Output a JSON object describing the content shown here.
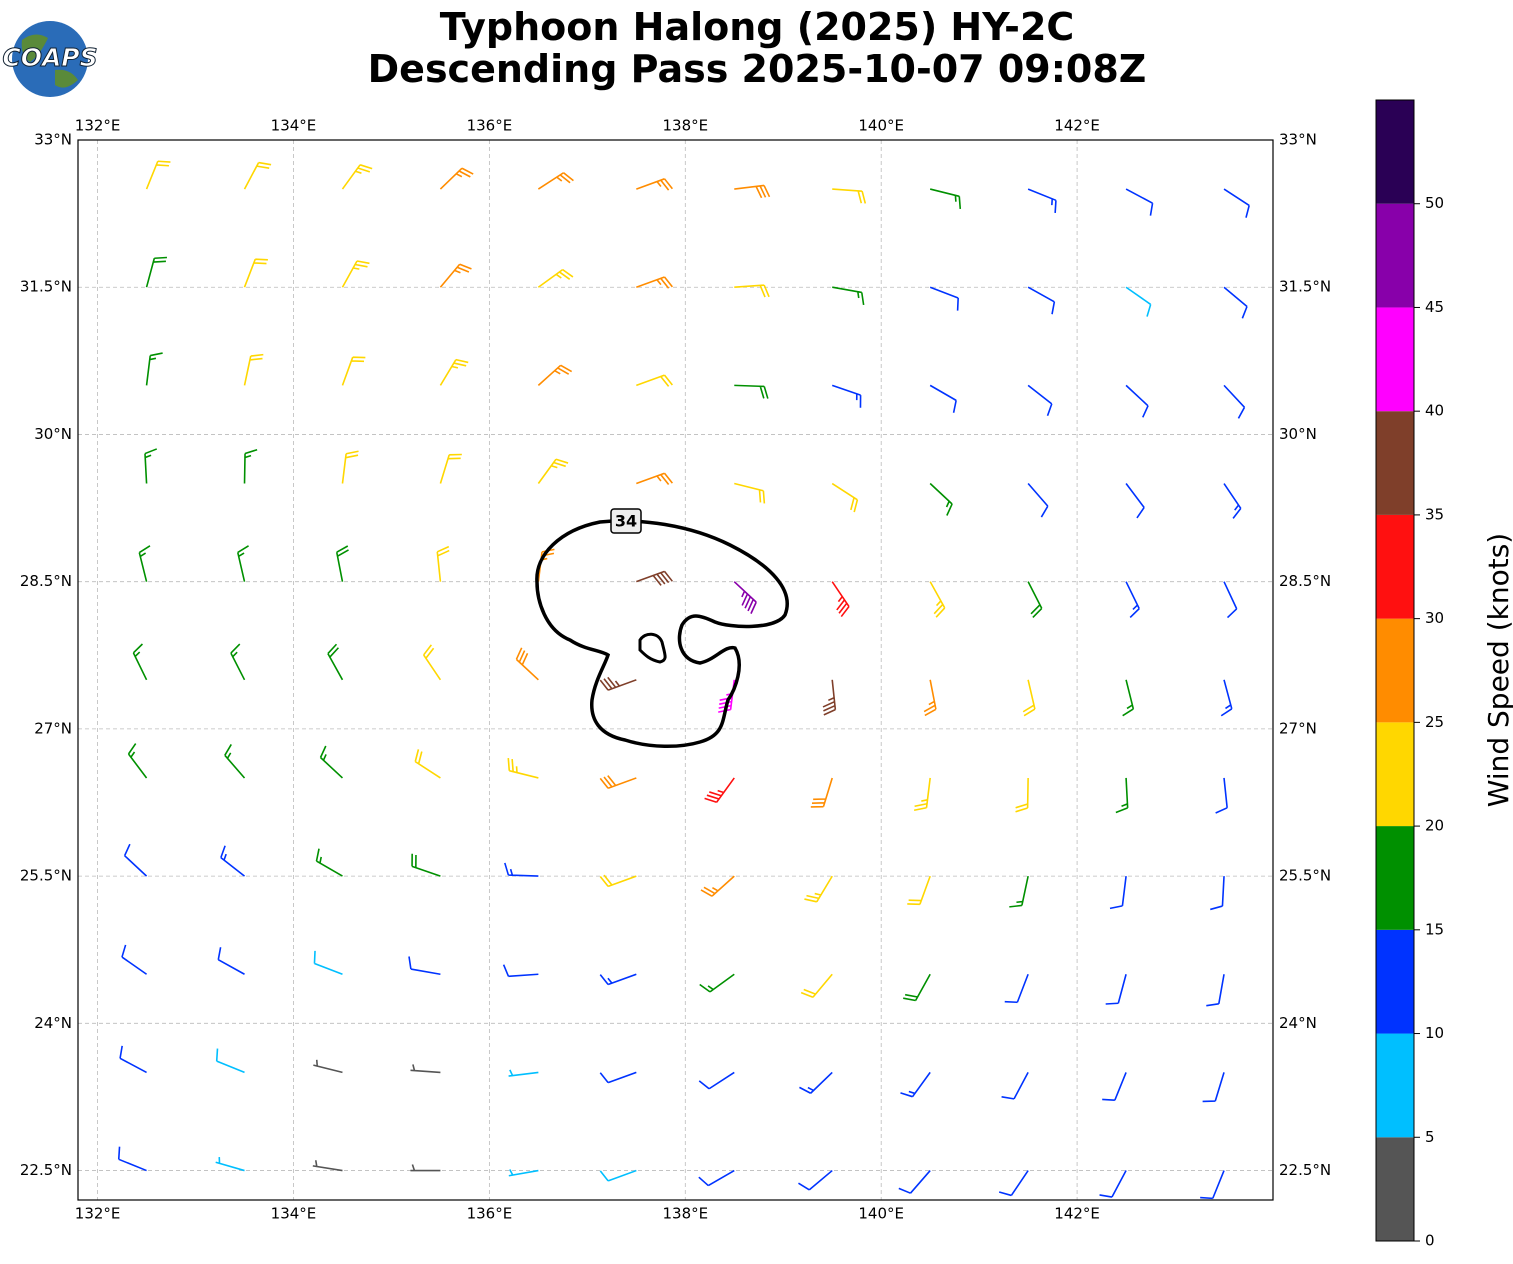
{
  "chart_data": {
    "type": "wind-barbs",
    "title": [
      "Typhoon Halong (2025) HY-2C",
      "Descending Pass 2025-10-07 09:08Z"
    ],
    "logo": "COAPS",
    "xlim": [
      131.8,
      144
    ],
    "ylim": [
      22.2,
      33
    ],
    "xticks": [
      {
        "value": 132,
        "label": "132°E"
      },
      {
        "value": 134,
        "label": "134°E"
      },
      {
        "value": 136,
        "label": "136°E"
      },
      {
        "value": 138,
        "label": "138°E"
      },
      {
        "value": 140,
        "label": "140°E"
      },
      {
        "value": 142,
        "label": "142°E"
      }
    ],
    "yticks": [
      {
        "value": 22.5,
        "label": "22.5°N"
      },
      {
        "value": 24,
        "label": "24°N"
      },
      {
        "value": 25.5,
        "label": "25.5°N"
      },
      {
        "value": 27,
        "label": "27°N"
      },
      {
        "value": 28.5,
        "label": "28.5°N"
      },
      {
        "value": 30,
        "label": "30°N"
      },
      {
        "value": 31.5,
        "label": "31.5°N"
      },
      {
        "value": 33,
        "label": "33°N"
      }
    ],
    "grid": true,
    "contour": {
      "level": 34,
      "label": "34"
    },
    "colorbar": {
      "label": "Wind Speed (knots)",
      "clim": [
        0,
        55
      ],
      "bounds": [
        0,
        5,
        10,
        15,
        20,
        25,
        30,
        35,
        40,
        45,
        50,
        55
      ],
      "colors": [
        "#555555",
        "#00bfff",
        "#0033ff",
        "#009000",
        "#ffd700",
        "#ff8c00",
        "#ff1010",
        "#7f3f2a",
        "#ff00ff",
        "#8800aa",
        "#2a0055"
      ],
      "ticks": [
        0,
        5,
        10,
        15,
        20,
        25,
        30,
        35,
        40,
        45,
        50
      ]
    },
    "barbs": {
      "lons": [
        132.5,
        133.5,
        134.5,
        135.5,
        136.5,
        137.5,
        138.5,
        139.5,
        140.5,
        141.5,
        142.5,
        143.5
      ],
      "lats": [
        32.5,
        31.5,
        30.5,
        29.5,
        28.5,
        27.5,
        26.5,
        25.5,
        24.5,
        23.5,
        22.5
      ],
      "speed": [
        [
          20,
          22,
          23,
          27,
          27,
          27,
          28,
          22,
          17,
          13,
          12,
          11
        ],
        [
          18,
          22,
          23,
          27,
          23,
          27,
          22,
          17,
          12,
          11,
          8,
          11
        ],
        [
          17,
          20,
          22,
          23,
          27,
          22,
          18,
          13,
          12,
          12,
          11,
          12
        ],
        [
          17,
          17,
          20,
          22,
          23,
          27,
          22,
          22,
          17,
          12,
          12,
          13
        ],
        [
          16,
          17,
          18,
          22,
          27,
          38,
          45,
          33,
          23,
          18,
          13,
          12
        ],
        [
          16,
          17,
          18,
          22,
          28,
          36,
          44,
          36,
          27,
          22,
          17,
          13
        ],
        [
          16,
          17,
          17,
          20,
          23,
          28,
          33,
          28,
          23,
          22,
          17,
          12
        ],
        [
          12,
          13,
          17,
          18,
          13,
          22,
          27,
          24,
          22,
          16,
          12,
          11
        ],
        [
          12,
          11,
          8,
          10,
          12,
          13,
          17,
          20,
          18,
          12,
          11,
          11
        ],
        [
          12,
          8,
          4,
          3,
          7,
          12,
          12,
          14,
          13,
          11,
          11,
          12
        ],
        [
          11,
          7,
          4,
          3,
          7,
          9,
          11,
          12,
          12,
          11,
          12,
          12
        ]
      ],
      "direction": [
        [
          248,
          242,
          234,
          224,
          213,
          200,
          187,
          176,
          166,
          158,
          152,
          147
        ],
        [
          255,
          249,
          241,
          230,
          216,
          200,
          184,
          170,
          159,
          151,
          145,
          140
        ],
        [
          263,
          258,
          250,
          239,
          222,
          200,
          178,
          161,
          150,
          142,
          137,
          133
        ],
        [
          273,
          269,
          263,
          253,
          234,
          200,
          166,
          147,
          137,
          131,
          127,
          124
        ],
        [
          284,
          283,
          281,
          276,
          263,
          200,
          137,
          124,
          119,
          117,
          116,
          115
        ],
        [
          296,
          297,
          299,
          304,
          317,
          20,
          83,
          96,
          101,
          103,
          104,
          105
        ],
        [
          307,
          311,
          317,
          327,
          346,
          20,
          54,
          73,
          83,
          89,
          93,
          96
        ],
        [
          317,
          322,
          330,
          341,
          358,
          20,
          42,
          59,
          70,
          78,
          83,
          87
        ],
        [
          325,
          331,
          339,
          350,
          4,
          20,
          36,
          50,
          61,
          69,
          75,
          80
        ],
        [
          332,
          338,
          346,
          356,
          7,
          20,
          33,
          44,
          54,
          62,
          68,
          73
        ],
        [
          338,
          344,
          351,
          0,
          10,
          20,
          30,
          40,
          49,
          56,
          62,
          68
        ]
      ]
    }
  }
}
